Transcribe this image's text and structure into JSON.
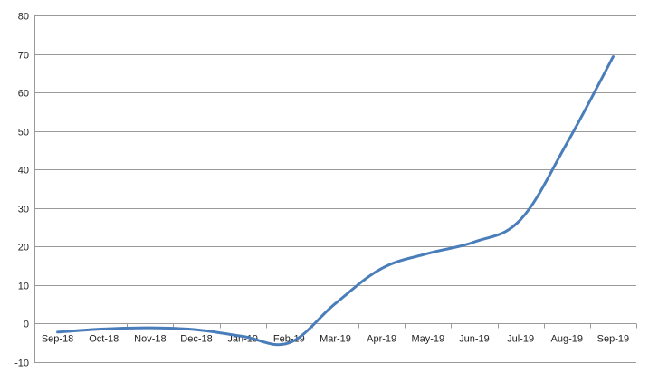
{
  "chart_data": {
    "type": "line",
    "title": "",
    "xlabel": "",
    "ylabel": "",
    "categories": [
      "Sep-18",
      "Oct-18",
      "Nov-18",
      "Dec-18",
      "Jan-19",
      "Feb-19",
      "Mar-19",
      "Apr-19",
      "May-19",
      "Jun-19",
      "Jul-19",
      "Aug-19",
      "Sep-19"
    ],
    "series": [
      {
        "values": [
          -2.2,
          -1.4,
          -1.1,
          -1.6,
          -3.3,
          -5.0,
          5.2,
          14.3,
          18.2,
          21.2,
          27.0,
          46.8,
          69.3
        ],
        "color": "#4A7EBB"
      }
    ],
    "ylim": [
      -10,
      80
    ],
    "yticks": [
      -10,
      0,
      10,
      20,
      30,
      40,
      50,
      60,
      70,
      80
    ],
    "ytick_labels": [
      "-10",
      "0",
      "10",
      "20",
      "30",
      "40",
      "50",
      "60",
      "70",
      "80"
    ],
    "grid": true,
    "legend": "none"
  }
}
